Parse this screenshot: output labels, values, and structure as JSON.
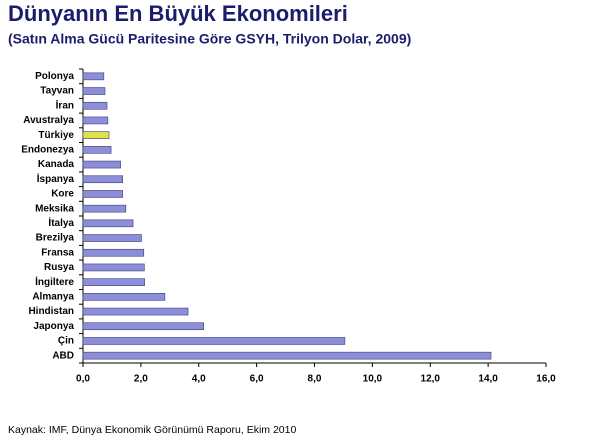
{
  "chart_data": {
    "type": "bar",
    "orientation": "horizontal",
    "title": "Dünyanın En Büyük Ekonomileri",
    "subtitle": "(Satın Alma Gücü Paritesine Göre GSYH, Trilyon Dolar, 2009)",
    "source": "Kaynak: IMF, Dünya Ekonomik Görünümü Raporu, Ekim 2010",
    "categories": [
      "Polonya",
      "Tayvan",
      "İran",
      "Avustralya",
      "Türkiye",
      "Endonezya",
      "Kanada",
      "İspanya",
      "Kore",
      "Meksika",
      "İtalya",
      "Brezilya",
      "Fransa",
      "Rusya",
      "İngiltere",
      "Almanya",
      "Hindistan",
      "Japonya",
      "Çin",
      "ABD"
    ],
    "values": [
      0.72,
      0.76,
      0.83,
      0.86,
      0.9,
      0.97,
      1.3,
      1.37,
      1.37,
      1.48,
      1.73,
      2.02,
      2.1,
      2.12,
      2.13,
      2.83,
      3.63,
      4.17,
      9.05,
      14.1
    ],
    "colors": [
      "#8c8ed8",
      "#8c8ed8",
      "#8c8ed8",
      "#8c8ed8",
      "#e2e248",
      "#8c8ed8",
      "#8c8ed8",
      "#8c8ed8",
      "#8c8ed8",
      "#8c8ed8",
      "#8c8ed8",
      "#8c8ed8",
      "#8c8ed8",
      "#8c8ed8",
      "#8c8ed8",
      "#8c8ed8",
      "#8c8ed8",
      "#8c8ed8",
      "#8c8ed8",
      "#8c8ed8"
    ],
    "xlim": [
      0,
      16
    ],
    "xticks": [
      {
        "value": 0,
        "label": "0,0"
      },
      {
        "value": 2,
        "label": "2,0"
      },
      {
        "value": 4,
        "label": "4,0"
      },
      {
        "value": 6,
        "label": "6,0"
      },
      {
        "value": 8,
        "label": "8,0"
      },
      {
        "value": 10,
        "label": "10,0"
      },
      {
        "value": 12,
        "label": "12,0"
      },
      {
        "value": 14,
        "label": "14,0"
      },
      {
        "value": 16,
        "label": "16,0"
      }
    ],
    "grid": false
  }
}
